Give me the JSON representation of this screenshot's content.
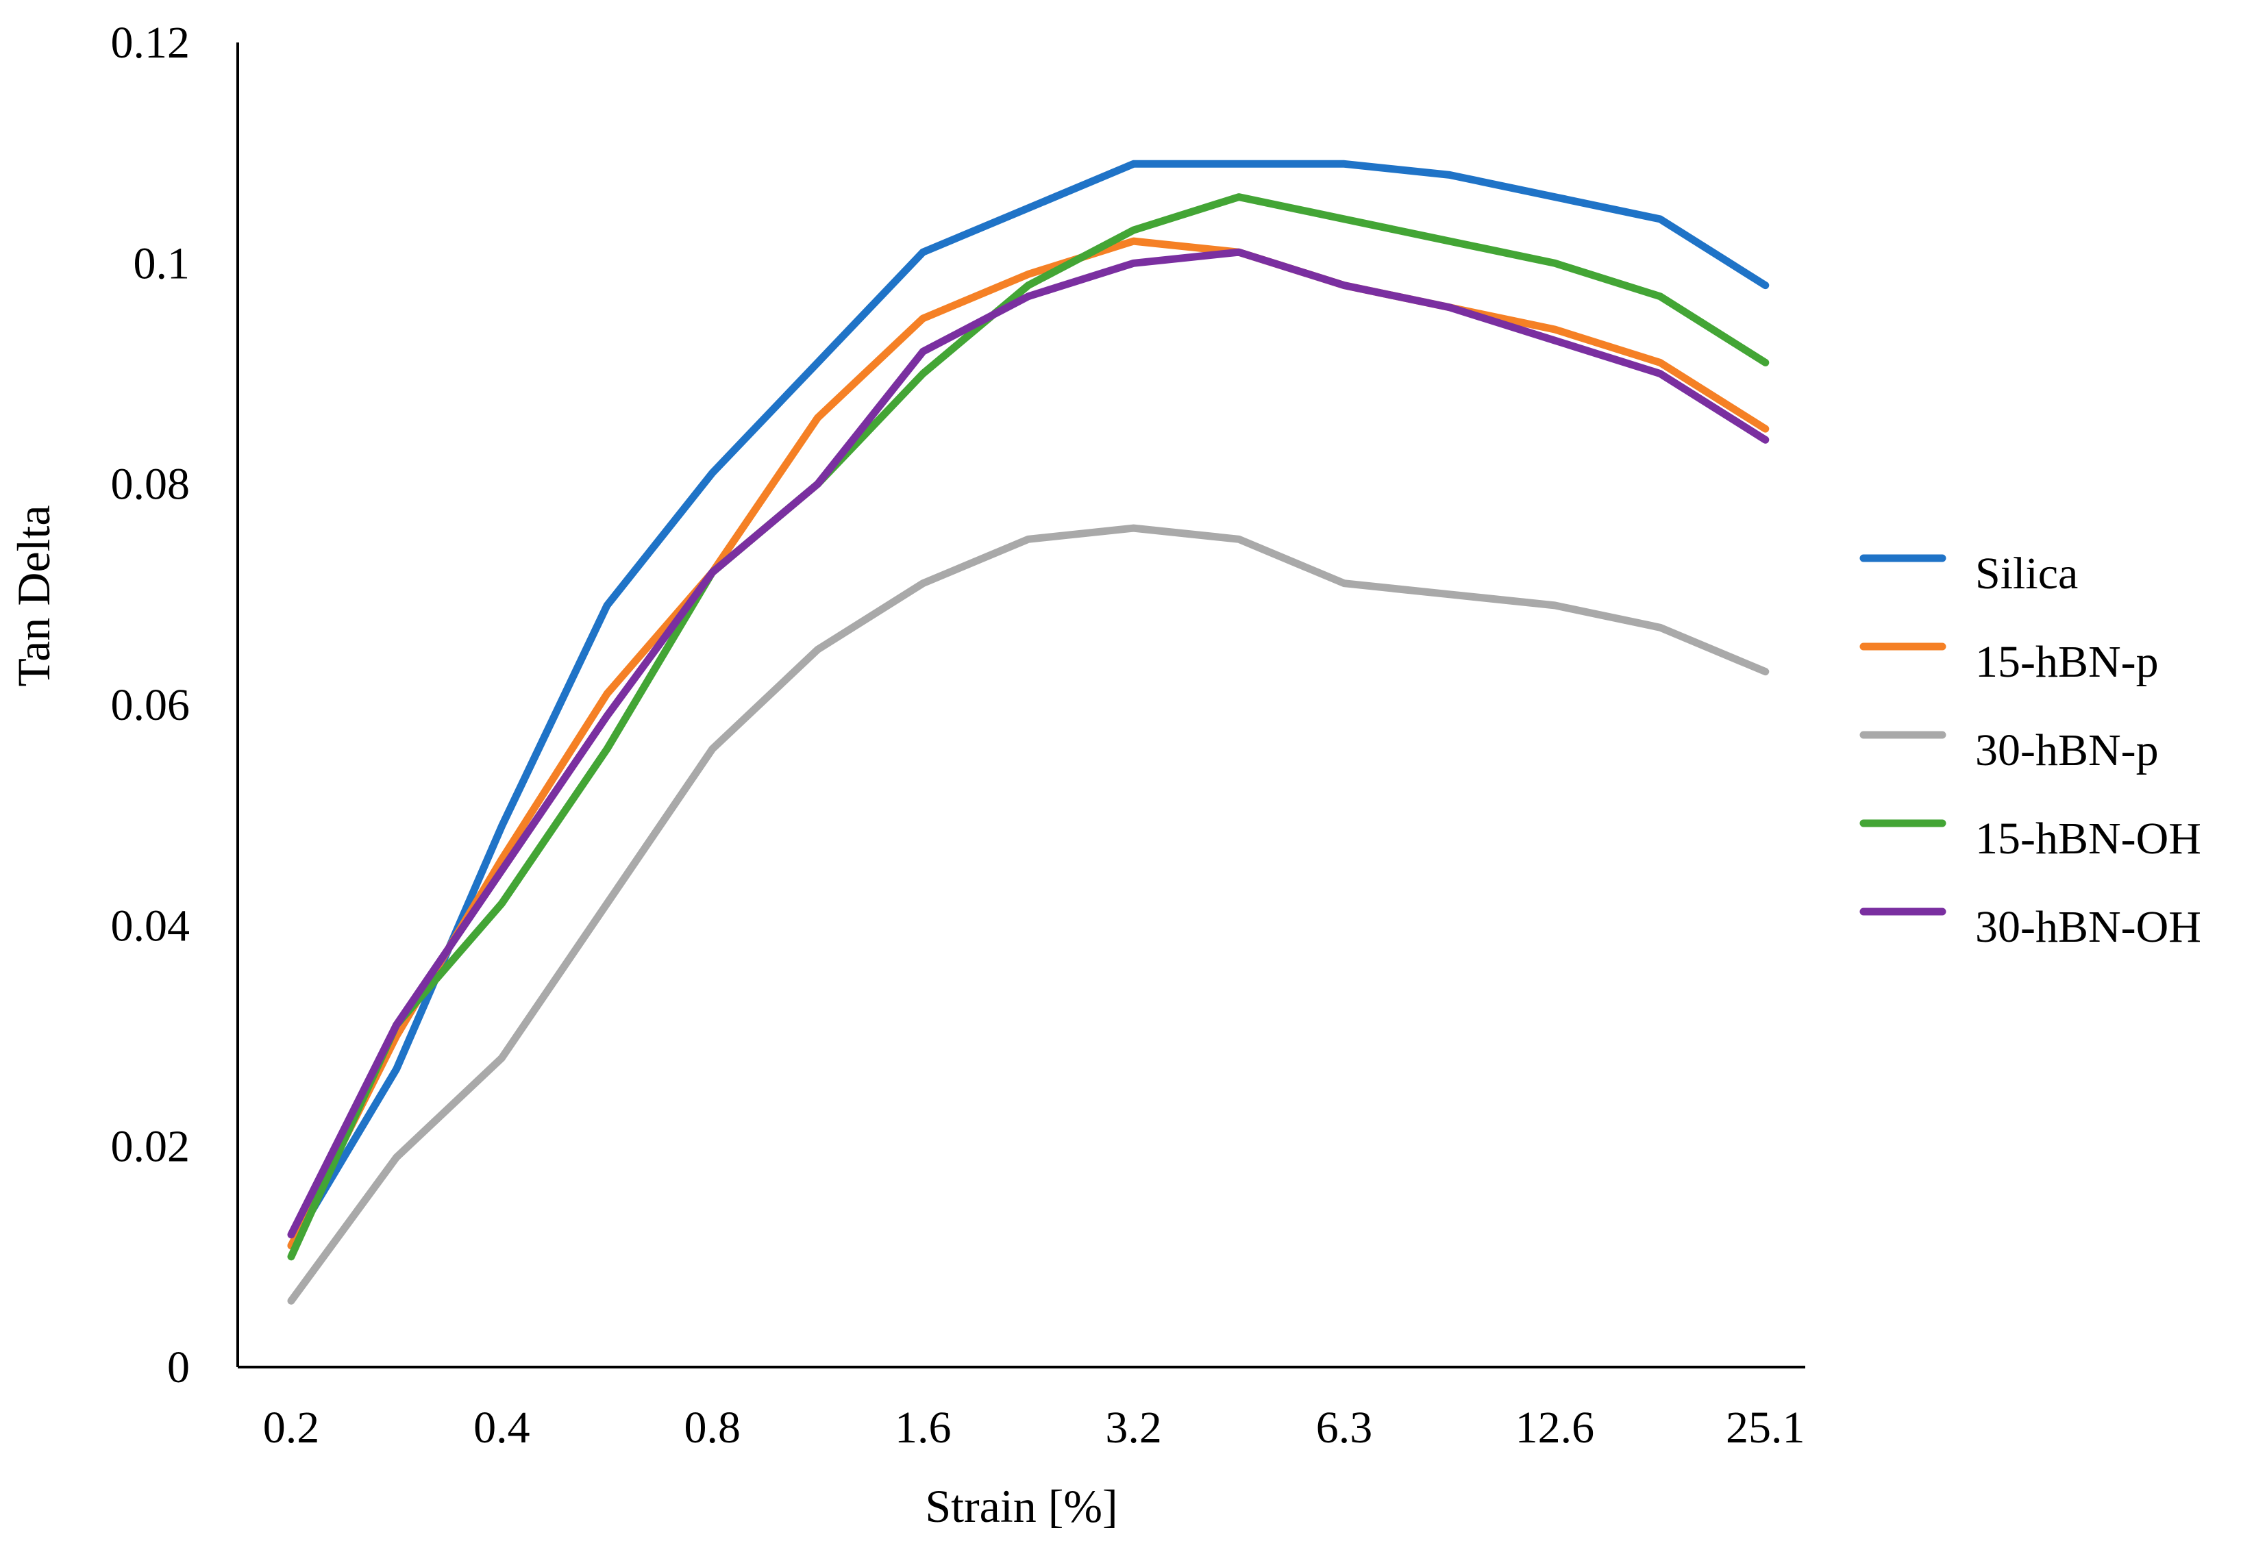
{
  "chart_data": {
    "type": "line",
    "title": "",
    "xlabel": "Strain [%]",
    "ylabel": "Tan Delta",
    "x_points": [
      0.2,
      0.28,
      0.4,
      0.56,
      0.8,
      1.13,
      1.6,
      2.26,
      3.2,
      4.5,
      6.3,
      8.9,
      12.6,
      17.8,
      25.1
    ],
    "x_tick_labels": [
      "0.2",
      "0.4",
      "0.8",
      "1.6",
      "3.2",
      "6.3",
      "12.6",
      "25.1"
    ],
    "x_tick_indices": [
      0,
      2,
      4,
      6,
      8,
      10,
      12,
      14
    ],
    "y_ticks": [
      0,
      0.02,
      0.04,
      0.06,
      0.08,
      0.1,
      0.12
    ],
    "y_tick_labels": [
      "0",
      "0.02",
      "0.04",
      "0.06",
      "0.08",
      "0.1",
      "0.12"
    ],
    "ylim": [
      0,
      0.12
    ],
    "legend_position": "right",
    "series": [
      {
        "name": "Silica",
        "color": "#1f73c7",
        "values": [
          0.011,
          0.027,
          0.049,
          0.069,
          0.081,
          0.091,
          0.101,
          0.105,
          0.109,
          0.109,
          0.109,
          0.108,
          0.106,
          0.104,
          0.098
        ]
      },
      {
        "name": "15-hBN-p",
        "color": "#f58025",
        "values": [
          0.011,
          0.03,
          0.046,
          0.061,
          0.072,
          0.086,
          0.095,
          0.099,
          0.102,
          0.101,
          0.098,
          0.096,
          0.094,
          0.091,
          0.085
        ]
      },
      {
        "name": "30-hBN-p",
        "color": "#a9a9a9",
        "values": [
          0.006,
          0.019,
          0.028,
          0.042,
          0.056,
          0.065,
          0.071,
          0.075,
          0.076,
          0.075,
          0.071,
          0.07,
          0.069,
          0.067,
          0.063
        ]
      },
      {
        "name": "15-hBN-OH",
        "color": "#43a535",
        "values": [
          0.01,
          0.031,
          0.042,
          0.056,
          0.072,
          0.08,
          0.09,
          0.098,
          0.103,
          0.106,
          0.104,
          0.102,
          0.1,
          0.097,
          0.091
        ]
      },
      {
        "name": "30-hBN-OH",
        "color": "#7a2fa0",
        "values": [
          0.012,
          0.031,
          0.045,
          0.059,
          0.072,
          0.08,
          0.092,
          0.097,
          0.1,
          0.101,
          0.098,
          0.096,
          0.093,
          0.09,
          0.084
        ]
      }
    ]
  }
}
